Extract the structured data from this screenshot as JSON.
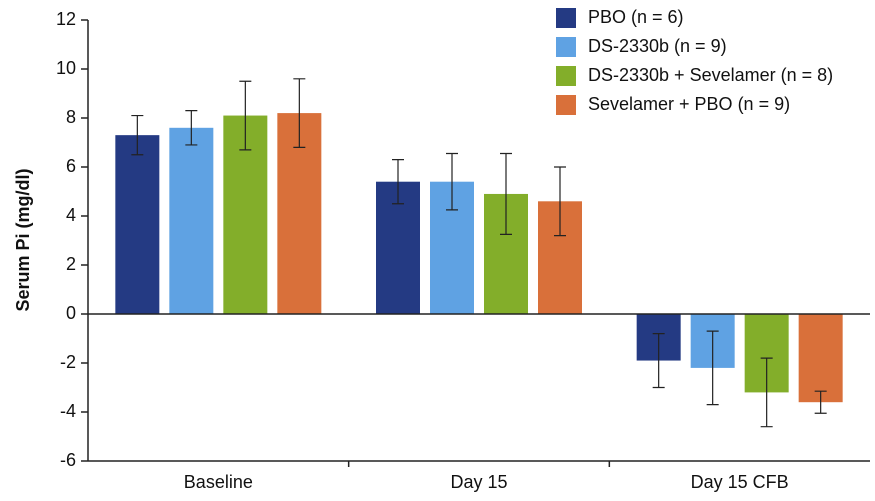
{
  "chart_data": {
    "type": "bar",
    "y_label": "Serum Pi (mg/dl)",
    "categories": [
      "Baseline",
      "Day 15",
      "Day 15 CFB"
    ],
    "series": [
      {
        "name": "PBO (n = 6)",
        "color": "#243a83",
        "values": [
          7.3,
          5.4,
          -1.9
        ],
        "errors": [
          0.8,
          0.9,
          1.1
        ]
      },
      {
        "name": "DS-2330b (n = 9)",
        "color": "#5fa2e3",
        "values": [
          7.6,
          5.4,
          -2.2
        ],
        "errors": [
          0.7,
          1.15,
          1.5
        ]
      },
      {
        "name": "DS-2330b + Sevelamer (n = 8)",
        "color": "#83ae2a",
        "values": [
          8.1,
          4.9,
          -3.2
        ],
        "errors": [
          1.4,
          1.65,
          1.4
        ]
      },
      {
        "name": "Sevelamer + PBO (n = 9)",
        "color": "#d9703a",
        "values": [
          8.2,
          4.6,
          -3.6
        ],
        "errors": [
          1.4,
          1.4,
          0.45
        ]
      }
    ],
    "ylim": [
      -6,
      12
    ],
    "yticks": [
      -6,
      -4,
      -2,
      0,
      2,
      4,
      6,
      8,
      10,
      12
    ],
    "legend": "upper right"
  }
}
